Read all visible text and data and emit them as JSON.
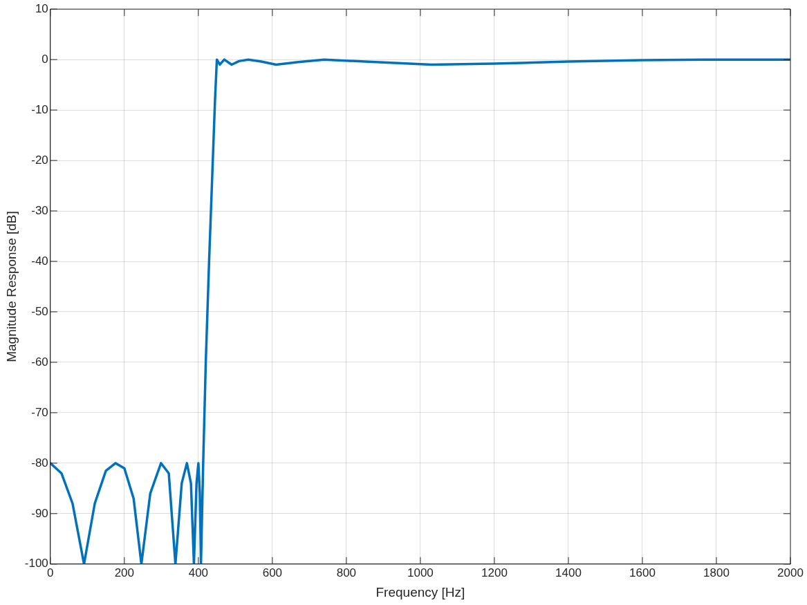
{
  "chart_data": {
    "type": "line",
    "xlabel": "Frequency [Hz]",
    "ylabel": "Magnitude Response [dB]",
    "x": [
      0,
      30,
      60,
      91,
      120,
      150,
      176,
      200,
      225,
      246,
      270,
      299,
      320,
      338,
      355,
      369,
      380,
      388,
      395,
      400,
      404,
      407,
      413,
      420,
      429,
      439,
      445,
      450,
      458,
      470,
      490,
      510,
      535,
      570,
      610,
      670,
      740,
      850,
      1030,
      1200,
      1400,
      1600,
      1800,
      2000
    ],
    "series": [
      {
        "color": "#0072bd",
        "values": [
          -80,
          -82,
          -88,
          -100,
          -88,
          -81.5,
          -80,
          -81,
          -87,
          -100,
          -86,
          -80,
          -82,
          -100,
          -84,
          -80,
          -84,
          -100,
          -84,
          -80,
          -86,
          -100,
          -80,
          -60,
          -40,
          -20,
          -8,
          0,
          -1,
          0,
          -1,
          -0.3,
          0,
          -0.4,
          -1,
          -0.5,
          0,
          -0.4,
          -1,
          -0.8,
          -0.4,
          -0.1,
          0,
          0
        ]
      }
    ],
    "xlim": [
      0,
      2000
    ],
    "xticks": [
      0,
      200,
      400,
      600,
      800,
      1000,
      1200,
      1400,
      1600,
      1800,
      2000
    ],
    "ylim": [
      -100,
      10
    ],
    "yticks": [
      -100,
      -90,
      -80,
      -70,
      -60,
      -50,
      -40,
      -30,
      -20,
      -10,
      0,
      10
    ],
    "grid": true,
    "legend": false,
    "marker": "none",
    "line_style": "solid"
  }
}
